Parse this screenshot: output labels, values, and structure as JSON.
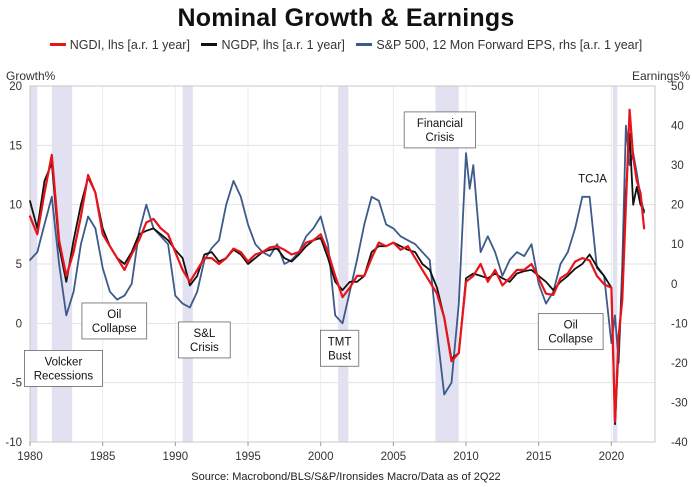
{
  "chart_data": {
    "type": "line",
    "title": "Nominal Growth & Earnings",
    "source": "Source: Macrobond/BLS/S&P/Ironsides Macro/Data as of 2Q22",
    "left_axis": {
      "label": "Growth%",
      "range": [
        -10,
        20
      ],
      "ticks": [
        20,
        15,
        10,
        5,
        0,
        -5,
        -10
      ]
    },
    "right_axis": {
      "label": "Earnings%",
      "range": [
        -40,
        50
      ],
      "ticks": [
        50,
        40,
        30,
        20,
        10,
        0,
        -10,
        -20,
        -30,
        -40
      ]
    },
    "x_axis": {
      "range": [
        1980,
        2023
      ],
      "ticks": [
        1980,
        1985,
        1990,
        1995,
        2000,
        2005,
        2010,
        2015,
        2020
      ]
    },
    "grid": true,
    "legend_position": "top",
    "recessions": [
      [
        1980.0,
        1980.5
      ],
      [
        1981.5,
        1982.9
      ],
      [
        1990.5,
        1991.2
      ],
      [
        2001.2,
        2001.9
      ],
      [
        2007.9,
        2009.5
      ],
      [
        2020.1,
        2020.4
      ]
    ],
    "annotations": [
      {
        "text": [
          "Volcker",
          "Recessions"
        ],
        "x": 1982.3,
        "y": -3.8
      },
      {
        "text": [
          "Oil",
          "Collapse"
        ],
        "x": 1985.8,
        "y": 0.2
      },
      {
        "text": [
          "S&L",
          "Crisis"
        ],
        "x": 1992.0,
        "y": -1.4
      },
      {
        "text": [
          "TMT",
          "Bust"
        ],
        "x": 2001.3,
        "y": -2.1
      },
      {
        "text": [
          "Financial",
          "Crisis"
        ],
        "x": 2008.2,
        "y": 16.3
      },
      {
        "text": [
          "Oil",
          "Collapse"
        ],
        "x": 2017.2,
        "y": -0.7
      },
      {
        "text": [
          "TCJA"
        ],
        "x": 2018.7,
        "y": 12.2,
        "boxed": false
      }
    ],
    "series": [
      {
        "name": "NGDI, lhs [a.r. 1 year]",
        "axis": "left",
        "color": "#e8141b",
        "x": [
          1980.0,
          1980.5,
          1981.0,
          1981.5,
          1982.0,
          1982.5,
          1983.0,
          1983.5,
          1984.0,
          1984.5,
          1985.0,
          1985.5,
          1986.0,
          1986.5,
          1987.0,
          1987.5,
          1988.0,
          1988.5,
          1989.0,
          1989.5,
          1990.0,
          1990.5,
          1991.0,
          1991.5,
          1992.0,
          1992.5,
          1993.0,
          1993.5,
          1994.0,
          1994.5,
          1995.0,
          1995.5,
          1996.0,
          1996.5,
          1997.0,
          1997.5,
          1998.0,
          1998.5,
          1999.0,
          1999.5,
          2000.0,
          2000.5,
          2001.0,
          2001.5,
          2002.0,
          2002.5,
          2003.0,
          2003.5,
          2004.0,
          2004.5,
          2005.0,
          2005.5,
          2006.0,
          2006.5,
          2007.0,
          2007.5,
          2008.0,
          2008.5,
          2009.0,
          2009.5,
          2010.0,
          2010.5,
          2011.0,
          2011.5,
          2012.0,
          2012.5,
          2013.0,
          2013.5,
          2014.0,
          2014.5,
          2015.0,
          2015.5,
          2016.0,
          2016.5,
          2017.0,
          2017.5,
          2018.0,
          2018.5,
          2019.0,
          2019.5,
          2020.0,
          2020.25,
          2020.5,
          2020.75,
          2021.0,
          2021.25,
          2021.5,
          2021.75,
          2022.0,
          2022.25
        ],
        "values": [
          9.0,
          7.5,
          11.0,
          14.2,
          7.0,
          4.0,
          6.0,
          9.0,
          12.5,
          11.0,
          7.5,
          6.5,
          5.5,
          4.5,
          5.8,
          7.0,
          8.5,
          8.8,
          8.0,
          7.5,
          6.0,
          4.5,
          3.5,
          4.5,
          5.5,
          5.5,
          5.0,
          5.5,
          6.3,
          6.0,
          5.2,
          5.8,
          6.0,
          6.4,
          6.5,
          6.2,
          5.8,
          6.0,
          6.8,
          7.0,
          7.5,
          6.0,
          4.0,
          2.2,
          3.0,
          4.0,
          4.0,
          5.5,
          6.8,
          6.5,
          6.8,
          6.2,
          6.5,
          5.5,
          4.5,
          3.5,
          2.5,
          0.5,
          -3.2,
          -2.5,
          3.5,
          4.0,
          5.0,
          3.5,
          4.5,
          3.2,
          3.8,
          4.5,
          4.5,
          5.0,
          3.8,
          2.5,
          2.4,
          3.8,
          4.2,
          5.2,
          5.5,
          5.3,
          4.0,
          3.3,
          3.0,
          -8.3,
          -1.0,
          2.0,
          10.0,
          18.0,
          14.0,
          12.0,
          11.0,
          8.0
        ]
      },
      {
        "name": "NGDP, lhs [a.r. 1 year]",
        "axis": "left",
        "color": "#111111",
        "x": [
          1980.0,
          1980.5,
          1981.0,
          1981.5,
          1982.0,
          1982.5,
          1983.0,
          1983.5,
          1984.0,
          1984.5,
          1985.0,
          1985.5,
          1986.0,
          1986.5,
          1987.0,
          1987.5,
          1988.0,
          1988.5,
          1989.0,
          1989.5,
          1990.0,
          1990.5,
          1991.0,
          1991.5,
          1992.0,
          1992.5,
          1993.0,
          1993.5,
          1994.0,
          1994.5,
          1995.0,
          1995.5,
          1996.0,
          1996.5,
          1997.0,
          1997.5,
          1998.0,
          1998.5,
          1999.0,
          1999.5,
          2000.0,
          2000.5,
          2001.0,
          2001.5,
          2002.0,
          2002.5,
          2003.0,
          2003.5,
          2004.0,
          2004.5,
          2005.0,
          2005.5,
          2006.0,
          2006.5,
          2007.0,
          2007.5,
          2008.0,
          2008.5,
          2009.0,
          2009.5,
          2010.0,
          2010.5,
          2011.0,
          2011.5,
          2012.0,
          2012.5,
          2013.0,
          2013.5,
          2014.0,
          2014.5,
          2015.0,
          2015.5,
          2016.0,
          2016.5,
          2017.0,
          2017.5,
          2018.0,
          2018.5,
          2019.0,
          2019.5,
          2020.0,
          2020.25,
          2020.5,
          2020.75,
          2021.0,
          2021.25,
          2021.5,
          2021.75,
          2022.0,
          2022.25
        ],
        "values": [
          10.3,
          8.0,
          12.0,
          13.5,
          6.5,
          3.5,
          7.0,
          10.0,
          12.3,
          11.0,
          8.0,
          6.5,
          5.5,
          5.0,
          6.0,
          7.5,
          7.8,
          8.0,
          7.5,
          7.0,
          6.2,
          5.5,
          3.2,
          4.0,
          5.8,
          6.0,
          5.2,
          5.5,
          6.2,
          5.8,
          5.0,
          5.5,
          6.0,
          6.2,
          6.3,
          5.5,
          5.2,
          5.8,
          6.5,
          7.0,
          7.2,
          5.5,
          3.5,
          2.8,
          3.5,
          3.5,
          4.0,
          6.0,
          6.5,
          6.5,
          6.8,
          6.5,
          6.2,
          6.0,
          5.0,
          4.5,
          3.0,
          0.5,
          -3.0,
          -2.5,
          3.8,
          4.2,
          4.0,
          3.8,
          4.2,
          3.8,
          3.5,
          4.2,
          4.4,
          4.5,
          4.0,
          3.5,
          2.8,
          3.5,
          4.0,
          4.6,
          5.0,
          5.8,
          4.8,
          4.0,
          3.0,
          -8.5,
          -2.0,
          3.0,
          11.0,
          16.0,
          10.0,
          11.5,
          10.0,
          9.5
        ]
      },
      {
        "name": "S&P 500, 12 Mon Forward EPS, rhs [a.r. 1 year]",
        "axis": "right",
        "color": "#3d5a8a",
        "x": [
          1980.0,
          1980.5,
          1981.0,
          1981.5,
          1982.0,
          1982.5,
          1983.0,
          1983.5,
          1984.0,
          1984.5,
          1985.0,
          1985.5,
          1986.0,
          1986.5,
          1987.0,
          1987.5,
          1988.0,
          1988.5,
          1989.0,
          1989.5,
          1990.0,
          1990.5,
          1991.0,
          1991.5,
          1992.0,
          1992.5,
          1993.0,
          1993.5,
          1994.0,
          1994.5,
          1995.0,
          1995.5,
          1996.0,
          1996.5,
          1997.0,
          1997.5,
          1998.0,
          1998.5,
          1999.0,
          1999.5,
          2000.0,
          2000.5,
          2001.0,
          2001.5,
          2002.0,
          2002.5,
          2003.0,
          2003.5,
          2004.0,
          2004.5,
          2005.0,
          2005.5,
          2006.0,
          2006.5,
          2007.0,
          2007.5,
          2008.0,
          2008.5,
          2009.0,
          2009.5,
          2010.0,
          2010.25,
          2010.5,
          2011.0,
          2011.5,
          2012.0,
          2012.5,
          2013.0,
          2013.5,
          2014.0,
          2014.5,
          2015.0,
          2015.5,
          2016.0,
          2016.5,
          2017.0,
          2017.5,
          2018.0,
          2018.5,
          2019.0,
          2019.5,
          2020.0,
          2020.25,
          2020.5,
          2020.75,
          2021.0,
          2021.25,
          2021.5,
          2021.75,
          2022.0,
          2022.25
        ],
        "values": [
          6.0,
          8.0,
          15.0,
          22.0,
          5.0,
          -8.0,
          -2.0,
          10.0,
          17.0,
          14.0,
          4.0,
          -2.0,
          -4.0,
          -3.0,
          0.0,
          13.0,
          20.0,
          14.0,
          12.0,
          10.0,
          -3.0,
          -5.0,
          -6.0,
          -2.0,
          6.0,
          9.0,
          11.0,
          20.0,
          26.0,
          22.0,
          15.0,
          10.0,
          8.0,
          7.0,
          10.0,
          5.0,
          6.0,
          8.0,
          12.0,
          14.0,
          17.0,
          10.0,
          -8.0,
          -10.0,
          -2.0,
          6.0,
          15.0,
          22.0,
          21.0,
          15.0,
          14.0,
          12.0,
          11.0,
          10.0,
          8.0,
          6.0,
          -12.0,
          -28.0,
          -25.0,
          -5.0,
          33.0,
          24.0,
          30.0,
          8.0,
          12.0,
          8.0,
          2.0,
          6.0,
          8.0,
          7.0,
          10.0,
          0.0,
          -5.0,
          -2.0,
          5.0,
          8.0,
          14.0,
          22.0,
          22.0,
          4.0,
          2.0,
          -15.0,
          -8.0,
          -20.0,
          5.0,
          40.0,
          30.0,
          33.0,
          28.0,
          22.0,
          18.0
        ]
      }
    ]
  }
}
